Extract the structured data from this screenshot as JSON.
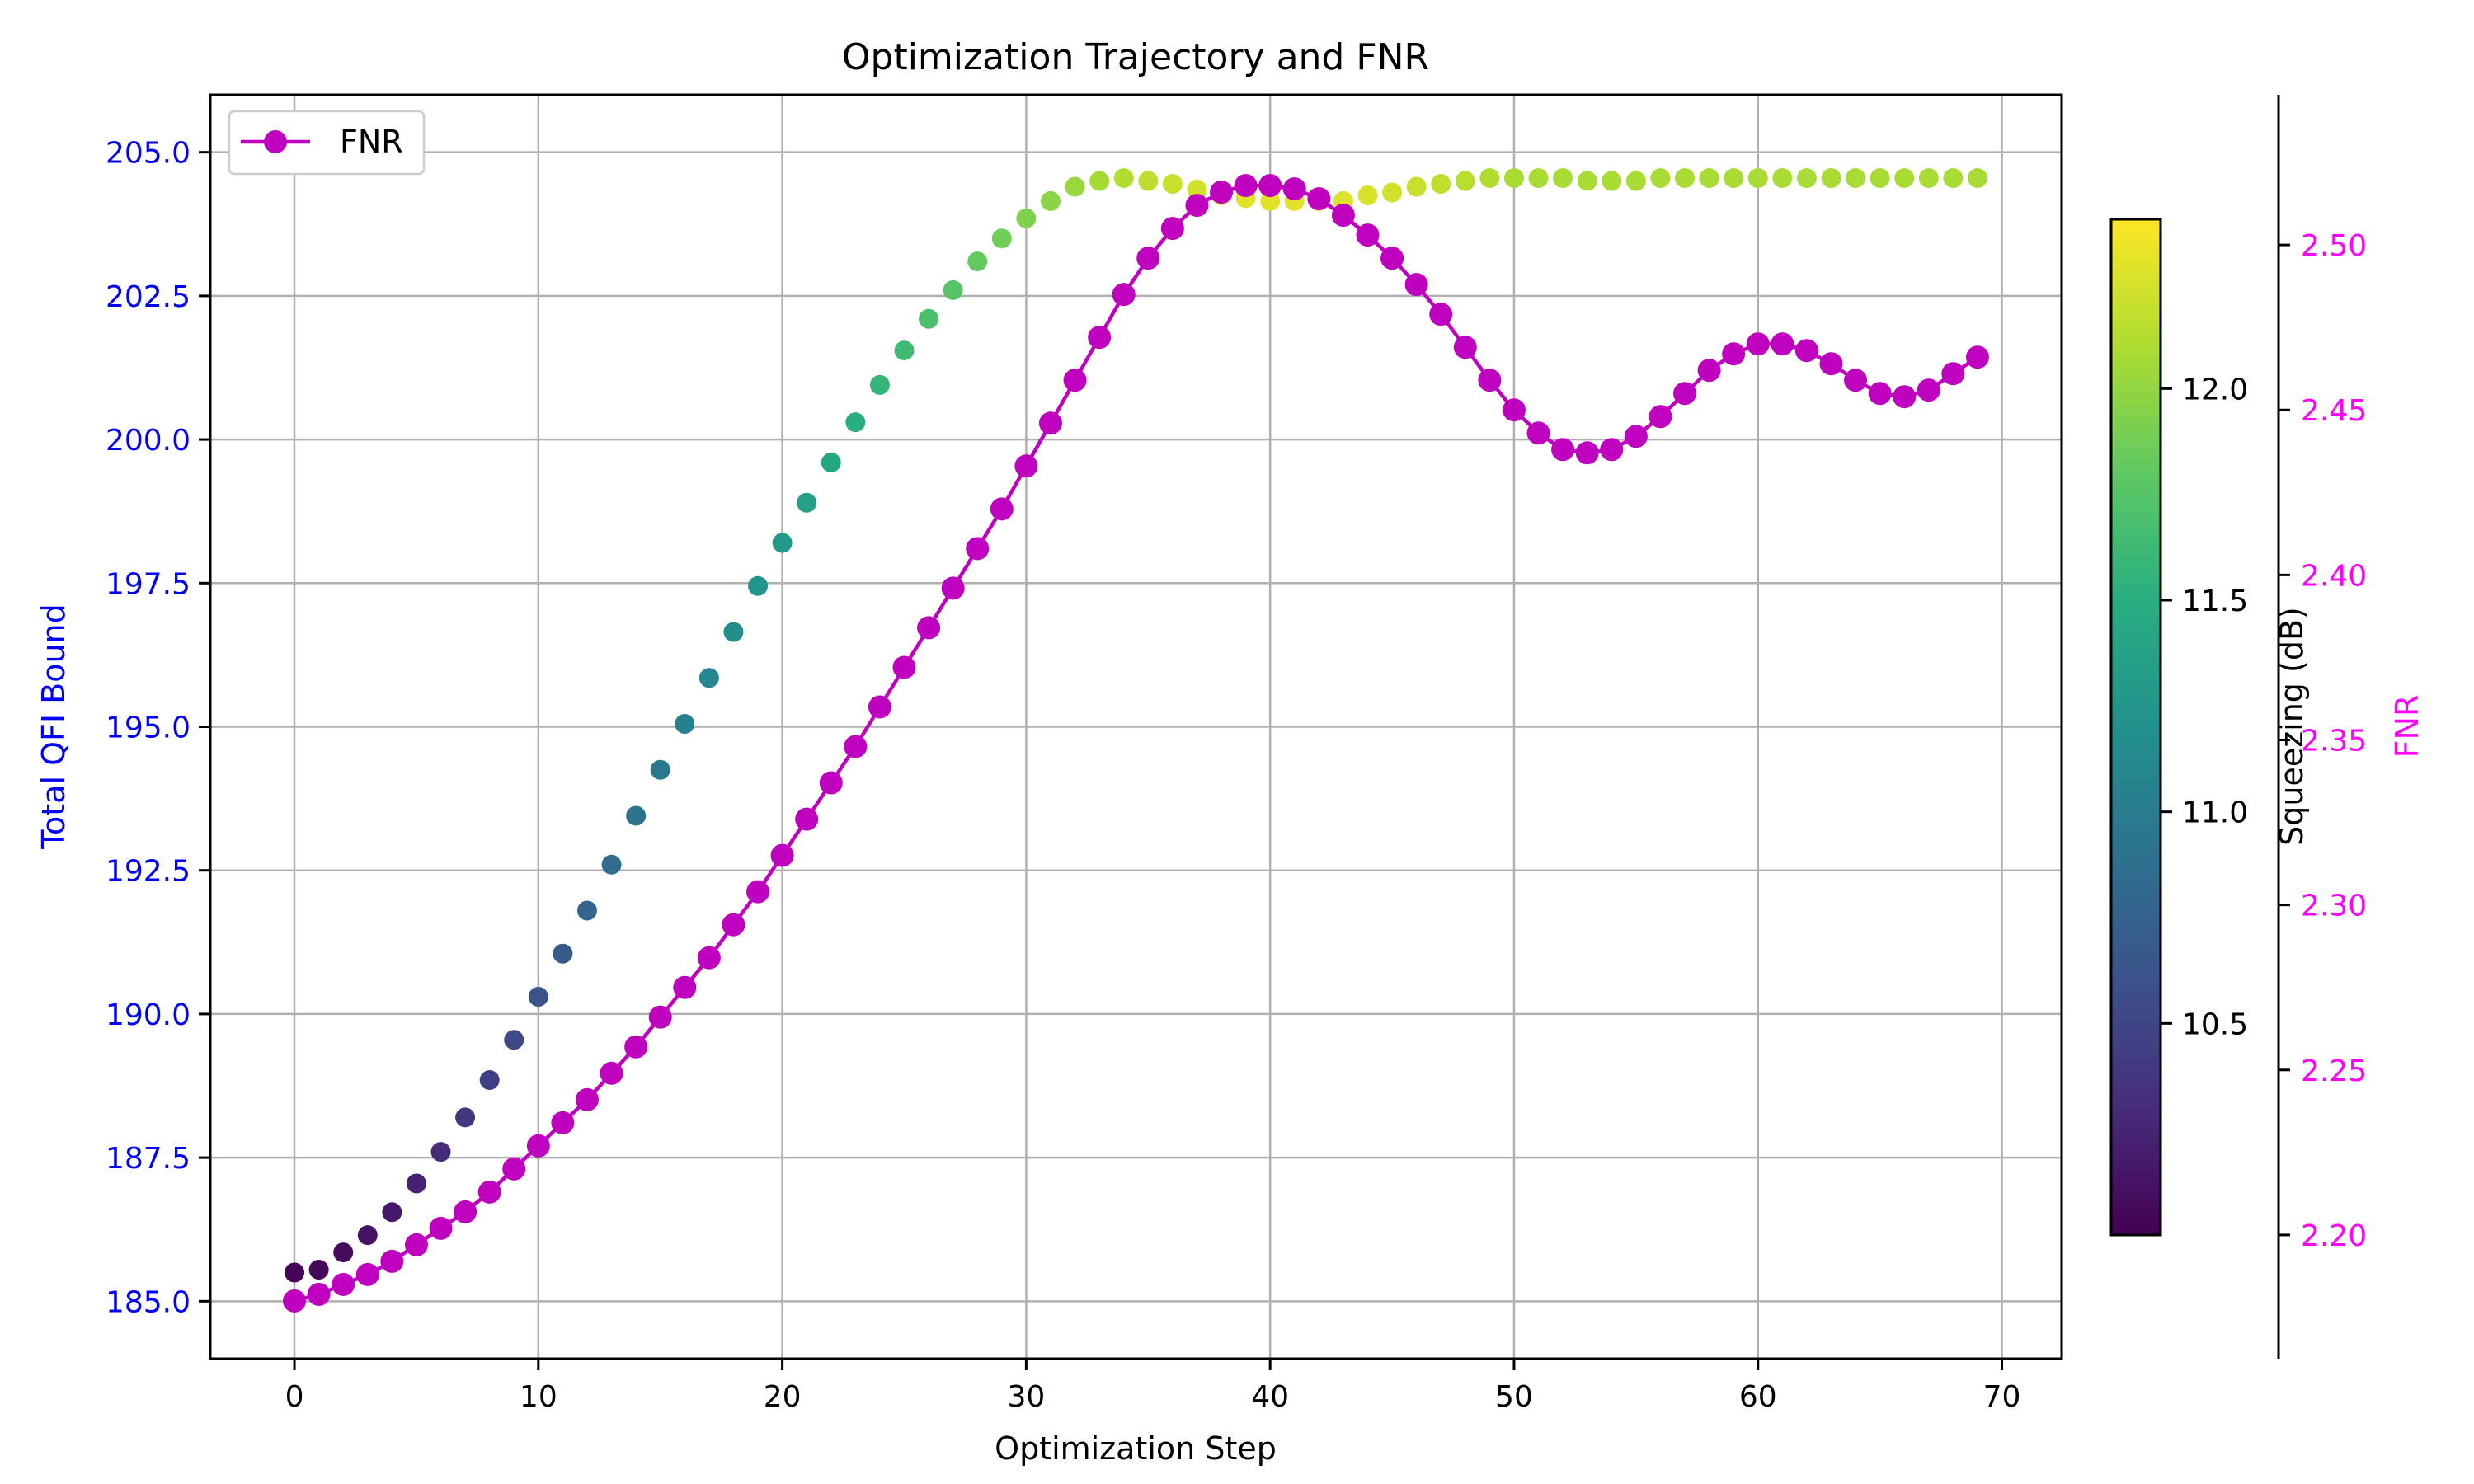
{
  "chart_data": {
    "type": "scatter",
    "title": "Optimization Trajectory and FNR",
    "xlabel": "Optimization Step",
    "ylabel": "Total QFI Bound",
    "ylabel_color": "#0000ff",
    "xlim": [
      -3.45,
      72.45
    ],
    "ylim": [
      184.0,
      206.0
    ],
    "xticks": [
      0,
      10,
      20,
      30,
      40,
      50,
      60,
      70
    ],
    "xtick_labels": [
      "0",
      "10",
      "20",
      "30",
      "40",
      "50",
      "60",
      "70"
    ],
    "yticks": [
      185.0,
      187.5,
      190.0,
      192.5,
      195.0,
      197.5,
      200.0,
      202.5,
      205.0
    ],
    "ytick_labels": [
      "185.0",
      "187.5",
      "190.0",
      "192.5",
      "195.0",
      "197.5",
      "200.0",
      "202.5",
      "205.0"
    ],
    "grid": true,
    "series": [
      {
        "kind": "scatter",
        "axis": "left",
        "x": [
          0,
          1,
          2,
          3,
          4,
          5,
          6,
          7,
          8,
          9,
          10,
          11,
          12,
          13,
          14,
          15,
          16,
          17,
          18,
          19,
          20,
          21,
          22,
          23,
          24,
          25,
          26,
          27,
          28,
          29,
          30,
          31,
          32,
          33,
          34,
          35,
          36,
          37,
          38,
          39,
          40,
          41,
          42,
          43,
          44,
          45,
          46,
          47,
          48,
          49,
          50,
          51,
          52,
          53,
          54,
          55,
          56,
          57,
          58,
          59,
          60,
          61,
          62,
          63,
          64,
          65,
          66,
          67,
          68,
          69
        ],
        "y": [
          185.5,
          185.55,
          185.85,
          186.15,
          186.55,
          187.05,
          187.6,
          188.2,
          188.85,
          189.55,
          190.3,
          191.05,
          191.8,
          192.6,
          193.45,
          194.25,
          195.05,
          195.85,
          196.65,
          197.45,
          198.2,
          198.9,
          199.6,
          200.3,
          200.95,
          201.55,
          202.1,
          202.6,
          203.1,
          203.5,
          203.85,
          204.15,
          204.4,
          204.5,
          204.55,
          204.5,
          204.45,
          204.35,
          204.25,
          204.2,
          204.15,
          204.15,
          204.15,
          204.15,
          204.25,
          204.3,
          204.4,
          204.45,
          204.5,
          204.55,
          204.55,
          204.55,
          204.55,
          204.5,
          204.5,
          204.5,
          204.55,
          204.55,
          204.55,
          204.55,
          204.55,
          204.55,
          204.55,
          204.55,
          204.55,
          204.55,
          204.55,
          204.55,
          204.55,
          204.55
        ],
        "color_values": [
          10.02,
          10.04,
          10.07,
          10.11,
          10.16,
          10.22,
          10.29,
          10.37,
          10.45,
          10.53,
          10.61,
          10.69,
          10.77,
          10.84,
          10.91,
          10.97,
          11.04,
          11.1,
          11.17,
          11.23,
          11.3,
          11.36,
          11.43,
          11.5,
          11.57,
          11.63,
          11.7,
          11.76,
          11.82,
          11.87,
          11.92,
          11.97,
          12.02,
          12.07,
          12.12,
          12.16,
          12.2,
          12.23,
          12.26,
          12.28,
          12.3,
          12.3,
          12.3,
          12.28,
          12.26,
          12.23,
          12.2,
          12.17,
          12.14,
          12.11,
          12.09,
          12.08,
          12.08,
          12.08,
          12.08,
          12.08,
          12.08,
          12.08,
          12.08,
          12.08,
          12.08,
          12.08,
          12.08,
          12.08,
          12.08,
          12.08,
          12.08,
          12.08,
          12.08,
          12.08
        ]
      },
      {
        "name": "FNR",
        "kind": "line+marker",
        "axis": "right",
        "color": "#bf00bf",
        "x": [
          0,
          1,
          2,
          3,
          4,
          5,
          6,
          7,
          8,
          9,
          10,
          11,
          12,
          13,
          14,
          15,
          16,
          17,
          18,
          19,
          20,
          21,
          22,
          23,
          24,
          25,
          26,
          27,
          28,
          29,
          30,
          31,
          32,
          33,
          34,
          35,
          36,
          37,
          38,
          39,
          40,
          41,
          42,
          43,
          44,
          45,
          46,
          47,
          48,
          49,
          50,
          51,
          52,
          53,
          54,
          55,
          56,
          57,
          58,
          59,
          60,
          61,
          62,
          63,
          64,
          65,
          66,
          67,
          68,
          69
        ],
        "y": [
          2.18,
          2.182,
          2.185,
          2.188,
          2.192,
          2.197,
          2.202,
          2.207,
          2.213,
          2.22,
          2.227,
          2.234,
          2.241,
          2.249,
          2.257,
          2.266,
          2.275,
          2.284,
          2.294,
          2.304,
          2.315,
          2.326,
          2.337,
          2.348,
          2.36,
          2.372,
          2.384,
          2.396,
          2.408,
          2.42,
          2.433,
          2.446,
          2.459,
          2.472,
          2.485,
          2.496,
          2.505,
          2.512,
          2.516,
          2.518,
          2.518,
          2.517,
          2.514,
          2.509,
          2.503,
          2.496,
          2.488,
          2.479,
          2.469,
          2.459,
          2.45,
          2.443,
          2.438,
          2.437,
          2.438,
          2.442,
          2.448,
          2.455,
          2.462,
          2.467,
          2.47,
          2.47,
          2.468,
          2.464,
          2.459,
          2.455,
          2.454,
          2.456,
          2.461,
          2.466
        ]
      }
    ],
    "y2label": "FNR",
    "y2_color": "#ff00ff",
    "y2lim": [
      2.1625,
      2.5455
    ],
    "y2ticks": [
      2.2,
      2.25,
      2.3,
      2.35,
      2.4,
      2.45,
      2.5
    ],
    "y2tick_labels": [
      "2.20",
      "2.25",
      "2.30",
      "2.35",
      "2.40",
      "2.45",
      "2.50"
    ],
    "legend": {
      "placement": "top-left",
      "entries": [
        "FNR"
      ]
    },
    "colorbar": {
      "label": "Squeezing (dB)",
      "colormap": "viridis",
      "range": [
        10.0,
        12.4
      ],
      "ticks": [
        10.5,
        11.0,
        11.5,
        12.0
      ],
      "tick_labels": [
        "10.5",
        "11.0",
        "11.5",
        "12.0"
      ]
    }
  }
}
